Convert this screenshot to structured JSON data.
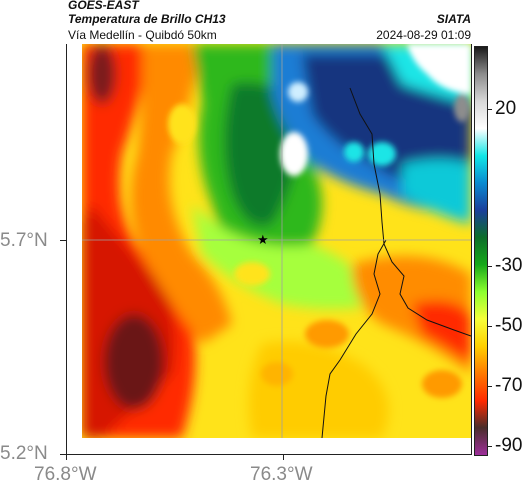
{
  "header": {
    "title": "GOES-EAST",
    "subtitle": "Temperatura de Brillo CH13",
    "region": "Vía Medellín - Quibdó 50km",
    "source": "SIATA",
    "datetime": "2024-08-29 01:09"
  },
  "axes": {
    "lat_labels": [
      "5.7°N",
      "5.2°N"
    ],
    "lon_labels": [
      "76.8°W",
      "76.3°W"
    ]
  },
  "colorbar": {
    "ticks": [
      "20",
      "-30",
      "-50",
      "-70",
      "-90"
    ],
    "colors": [
      "#9e2f9a",
      "#4a2d2a",
      "#ff2a00",
      "#ff7a00",
      "#ffd000",
      "#f6ff3a",
      "#8cff2f",
      "#16a81a",
      "#0d6e2a",
      "#1a3f9c",
      "#0a8bd0",
      "#11e6e6",
      "#ffffff",
      "#d8d8d8",
      "#8d8d8d",
      "#1a1a1a"
    ]
  },
  "map": {
    "marker_icon": "star-icon",
    "colors": {
      "cold_top": "#ffffff",
      "very_cold": "#14347f",
      "cold": "#1d7dd4",
      "cyan": "#1de5e6",
      "green_dark": "#0e7a2a",
      "green": "#35c51e",
      "lime": "#9eff3c",
      "yellow": "#fff12a",
      "orange": "#ff8a00",
      "red": "#ff2400",
      "dark": "#5c1b1a",
      "gray": "#b8b8b8"
    }
  }
}
